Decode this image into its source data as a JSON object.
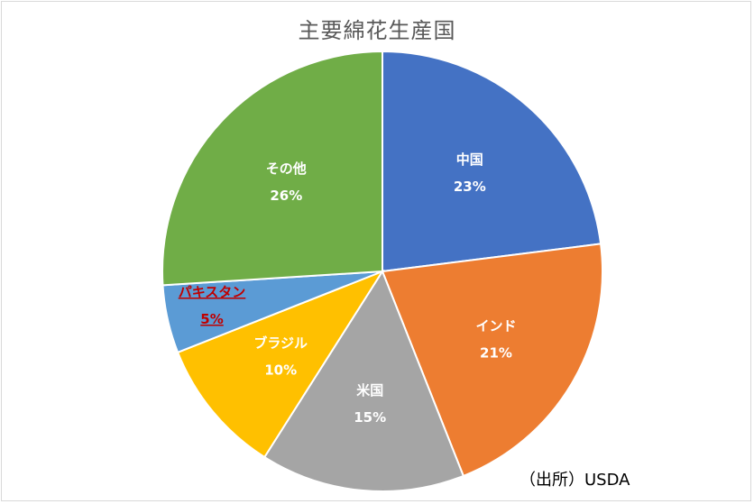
{
  "chart_data": {
    "type": "pie",
    "title": "主要綿花生産国",
    "categories": [
      "中国",
      "インド",
      "米国",
      "ブラジル",
      "パキスタン",
      "その他"
    ],
    "values": [
      23,
      21,
      15,
      10,
      5,
      26
    ],
    "value_labels": [
      "23%",
      "21%",
      "15%",
      "10%",
      "5%",
      "26%"
    ],
    "colors": [
      "#4472C4",
      "#ED7D31",
      "#A5A5A5",
      "#FFC000",
      "#5B9BD5",
      "#70AD47"
    ],
    "label_colors": [
      "#ffffff",
      "#ffffff",
      "#ffffff",
      "#ffffff",
      "#C00000",
      "#ffffff"
    ],
    "highlighted_category": "パキスタン",
    "start_angle_deg": 0,
    "direction": "clockwise"
  },
  "source": "（出所）USDA"
}
